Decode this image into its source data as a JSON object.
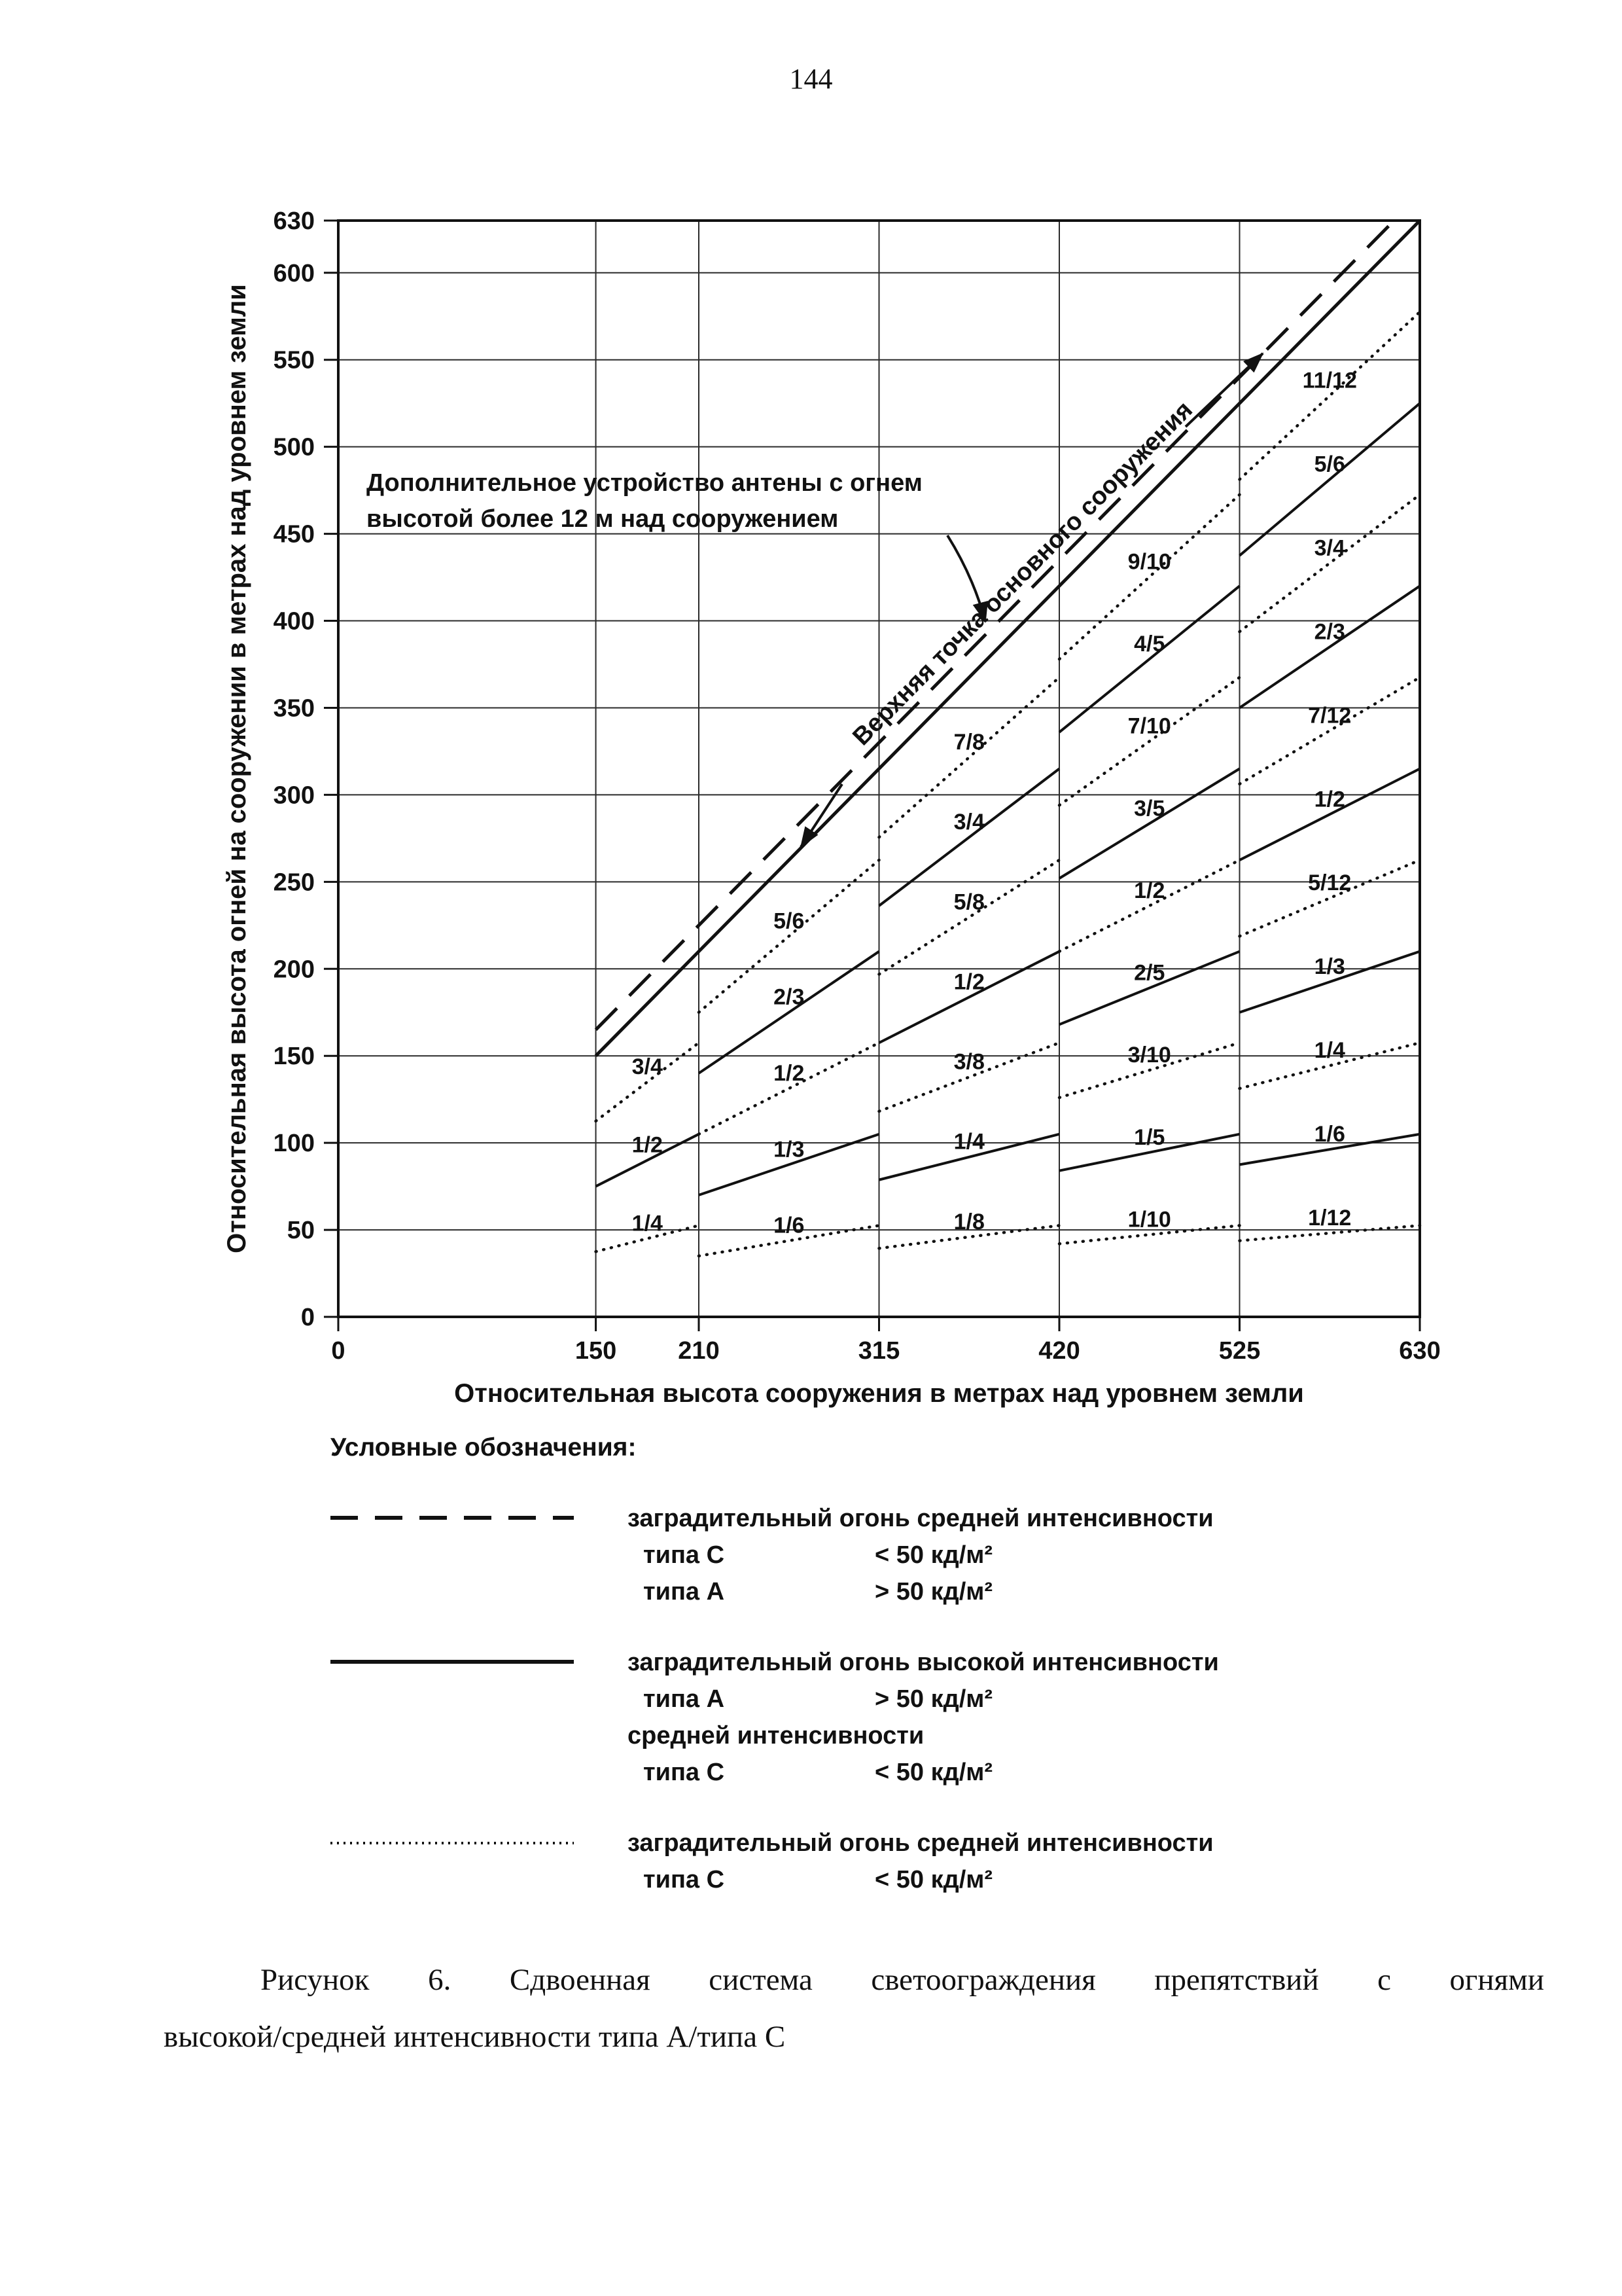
{
  "page": {
    "number": "144"
  },
  "chart_data": {
    "type": "line",
    "title": "",
    "xlabel": "Относительная высота сооружения в метрах над уровнем земли",
    "ylabel": "Относительная высота огней на сооружении в метрах над уровнем земли",
    "xlim": [
      0,
      630
    ],
    "ylim": [
      0,
      630
    ],
    "grid": true,
    "x_tick_values": [
      0,
      150,
      210,
      315,
      420,
      525,
      630
    ],
    "y_tick_values": [
      0,
      50,
      100,
      150,
      200,
      250,
      300,
      350,
      400,
      450,
      500,
      550,
      600,
      630
    ],
    "grid_x_values": [
      150,
      210,
      315,
      420,
      525
    ],
    "grid_y_values": [
      50,
      100,
      150,
      200,
      250,
      300,
      350,
      400,
      450,
      500,
      550,
      600
    ],
    "reference_lines": [
      {
        "name": "structure-top",
        "style": "solid",
        "x1": 150,
        "y1": 150,
        "x2": 630,
        "y2": 630,
        "label": "Верхняя точка основного сооружения"
      },
      {
        "name": "antenna-top",
        "style": "dashed",
        "x1": 150,
        "y1": 165,
        "x2": 615,
        "y2": 630,
        "label": ""
      }
    ],
    "annotation": {
      "lines": [
        "Дополнительное устройство антены с огнем",
        "высотой более 12 м над сооружением"
      ]
    },
    "bands": [
      {
        "x_start": 150,
        "x_end": 210,
        "levels": [
          {
            "label": "3/4",
            "num": 3,
            "den": 4,
            "style": "dotted"
          },
          {
            "label": "1/2",
            "num": 1,
            "den": 2,
            "style": "solid"
          },
          {
            "label": "1/4",
            "num": 1,
            "den": 4,
            "style": "dotted"
          }
        ]
      },
      {
        "x_start": 210,
        "x_end": 315,
        "levels": [
          {
            "label": "5/6",
            "num": 5,
            "den": 6,
            "style": "dotted"
          },
          {
            "label": "2/3",
            "num": 2,
            "den": 3,
            "style": "solid"
          },
          {
            "label": "1/2",
            "num": 1,
            "den": 2,
            "style": "dotted"
          },
          {
            "label": "1/3",
            "num": 1,
            "den": 3,
            "style": "solid"
          },
          {
            "label": "1/6",
            "num": 1,
            "den": 6,
            "style": "dotted"
          }
        ]
      },
      {
        "x_start": 315,
        "x_end": 420,
        "levels": [
          {
            "label": "7/8",
            "num": 7,
            "den": 8,
            "style": "dotted"
          },
          {
            "label": "3/4",
            "num": 3,
            "den": 4,
            "style": "solid"
          },
          {
            "label": "5/8",
            "num": 5,
            "den": 8,
            "style": "dotted"
          },
          {
            "label": "1/2",
            "num": 1,
            "den": 2,
            "style": "solid"
          },
          {
            "label": "3/8",
            "num": 3,
            "den": 8,
            "style": "dotted"
          },
          {
            "label": "1/4",
            "num": 1,
            "den": 4,
            "style": "solid"
          },
          {
            "label": "1/8",
            "num": 1,
            "den": 8,
            "style": "dotted"
          }
        ]
      },
      {
        "x_start": 420,
        "x_end": 525,
        "levels": [
          {
            "label": "9/10",
            "num": 9,
            "den": 10,
            "style": "dotted"
          },
          {
            "label": "4/5",
            "num": 4,
            "den": 5,
            "style": "solid"
          },
          {
            "label": "7/10",
            "num": 7,
            "den": 10,
            "style": "dotted"
          },
          {
            "label": "3/5",
            "num": 3,
            "den": 5,
            "style": "solid"
          },
          {
            "label": "1/2",
            "num": 1,
            "den": 2,
            "style": "dotted"
          },
          {
            "label": "2/5",
            "num": 2,
            "den": 5,
            "style": "solid"
          },
          {
            "label": "3/10",
            "num": 3,
            "den": 10,
            "style": "dotted"
          },
          {
            "label": "1/5",
            "num": 1,
            "den": 5,
            "style": "solid"
          },
          {
            "label": "1/10",
            "num": 1,
            "den": 10,
            "style": "dotted"
          }
        ]
      },
      {
        "x_start": 525,
        "x_end": 630,
        "levels": [
          {
            "label": "11/12",
            "num": 11,
            "den": 12,
            "style": "dotted"
          },
          {
            "label": "5/6",
            "num": 5,
            "den": 6,
            "style": "solid"
          },
          {
            "label": "3/4",
            "num": 3,
            "den": 4,
            "style": "dotted"
          },
          {
            "label": "2/3",
            "num": 2,
            "den": 3,
            "style": "solid"
          },
          {
            "label": "7/12",
            "num": 7,
            "den": 12,
            "style": "dotted"
          },
          {
            "label": "1/2",
            "num": 1,
            "den": 2,
            "style": "solid"
          },
          {
            "label": "5/12",
            "num": 5,
            "den": 12,
            "style": "dotted"
          },
          {
            "label": "1/3",
            "num": 1,
            "den": 3,
            "style": "solid"
          },
          {
            "label": "1/4",
            "num": 1,
            "den": 4,
            "style": "dotted"
          },
          {
            "label": "1/6",
            "num": 1,
            "den": 6,
            "style": "solid"
          },
          {
            "label": "1/12",
            "num": 1,
            "den": 12,
            "style": "dotted"
          }
        ]
      }
    ]
  },
  "legend": {
    "header": "Условные обозначения:",
    "entries": [
      {
        "line_style": "dashed",
        "rows": [
          {
            "label": "заградительный огонь средней интенсивности",
            "value": ""
          },
          {
            "label": "типа С",
            "value": "< 50 кд/м²"
          },
          {
            "label": "типа А",
            "value": "> 50 кд/м²"
          }
        ]
      },
      {
        "line_style": "solid",
        "rows": [
          {
            "label": "заградительный огонь высокой интенсивности",
            "value": ""
          },
          {
            "label": "типа А",
            "value": "> 50 кд/м²"
          },
          {
            "label": "средней интенсивности",
            "value": ""
          },
          {
            "label": "типа С",
            "value": "< 50 кд/м²"
          }
        ]
      },
      {
        "line_style": "dotted",
        "rows": [
          {
            "label": "заградительный огонь средней интенсивности",
            "value": ""
          },
          {
            "label": "типа С",
            "value": "< 50 кд/м²"
          }
        ]
      }
    ]
  },
  "caption": {
    "line1": "Рисунок 6. Сдвоенная система светоограждения препятствий с огнями",
    "line2": "высокой/средней интенсивности типа А/типа С"
  }
}
